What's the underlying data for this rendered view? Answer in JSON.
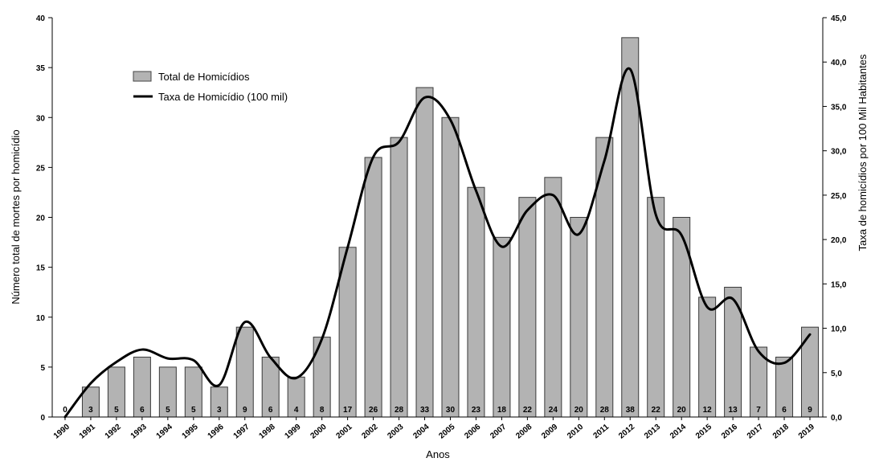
{
  "chart_data": {
    "type": "bar",
    "categories": [
      "1990",
      "1991",
      "1992",
      "1993",
      "1994",
      "1995",
      "1996",
      "1997",
      "1998",
      "1999",
      "2000",
      "2001",
      "2002",
      "2003",
      "2004",
      "2005",
      "2006",
      "2007",
      "2008",
      "2009",
      "2010",
      "2011",
      "2012",
      "2013",
      "2014",
      "2015",
      "2016",
      "2017",
      "2018",
      "2019"
    ],
    "series": [
      {
        "name": "Total de Homicídios",
        "type": "bar",
        "axis": "left",
        "color": "#b3b3b3",
        "values": [
          0,
          3,
          5,
          6,
          5,
          5,
          3,
          9,
          6,
          4,
          8,
          17,
          26,
          28,
          33,
          30,
          23,
          18,
          22,
          24,
          20,
          28,
          38,
          22,
          20,
          12,
          13,
          7,
          6,
          9
        ],
        "data_labels": [
          "0",
          "3",
          "5",
          "6",
          "5",
          "5",
          "3",
          "9",
          "6",
          "4",
          "8",
          "17",
          "26",
          "28",
          "33",
          "30",
          "23",
          "18",
          "22",
          "24",
          "20",
          "28",
          "38",
          "22",
          "20",
          "12",
          "13",
          "7",
          "6",
          "9"
        ]
      },
      {
        "name": "Taxa de Homicídio (100 mil)",
        "type": "line",
        "smooth": true,
        "axis": "right",
        "color": "#000000",
        "values": [
          0.0,
          3.8,
          6.2,
          7.6,
          6.6,
          6.4,
          3.6,
          10.7,
          6.7,
          4.4,
          8.8,
          19.1,
          29.3,
          31.0,
          36.0,
          33.5,
          25.5,
          19.2,
          23.3,
          25.0,
          20.6,
          28.9,
          39.2,
          22.8,
          20.5,
          12.4,
          13.3,
          7.4,
          6.1,
          9.3
        ]
      }
    ],
    "xlabel": "Anos",
    "ylabel": "Número total de mortes por homicídio",
    "ylabel_right": "Taxa de homicídios por 100 Mil Habitantes",
    "ylim": [
      0,
      40
    ],
    "ylim_right": [
      0,
      45
    ],
    "yticks": [
      "0",
      "5",
      "10",
      "15",
      "20",
      "25",
      "30",
      "35",
      "40"
    ],
    "yticks_right": [
      "0,0",
      "5,0",
      "10,0",
      "15,0",
      "20,0",
      "25,0",
      "30,0",
      "35,0",
      "40,0",
      "45,0"
    ],
    "legend_position": "top-left",
    "grid": false
  }
}
